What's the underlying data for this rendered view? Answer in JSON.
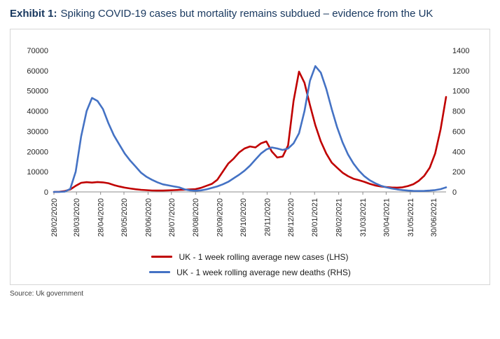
{
  "exhibit": {
    "label": "Exhibit 1:",
    "title": "Spiking COVID-19 cases but mortality remains subdued – evidence from the UK"
  },
  "source_note": "Source: Uk government",
  "chart_data": {
    "type": "line",
    "title": "Spiking COVID-19 cases but mortality remains subdued – evidence from the UK",
    "grid": false,
    "legend_position": "bottom",
    "x_axis": {
      "unit": "days since 28/02/2020",
      "range_days": [
        0,
        504
      ],
      "tick_labels": [
        "28/02/2020",
        "28/03/2020",
        "28/04/2020",
        "28/05/2020",
        "28/06/2020",
        "28/07/2020",
        "28/08/2020",
        "28/09/2020",
        "28/10/2020",
        "28/11/2020",
        "28/12/2020",
        "28/01/2021",
        "28/02/2021",
        "31/03/2021",
        "30/04/2021",
        "31/05/2021",
        "30/06/2021"
      ],
      "tick_days": [
        0,
        29,
        60,
        90,
        121,
        151,
        182,
        213,
        243,
        274,
        304,
        335,
        366,
        397,
        427,
        458,
        488
      ]
    },
    "left_axis": {
      "min": 0,
      "max": 70000,
      "ticks": [
        0,
        10000,
        20000,
        30000,
        40000,
        50000,
        60000,
        70000
      ]
    },
    "right_axis": {
      "min": 0,
      "max": 1400,
      "ticks": [
        0,
        200,
        400,
        600,
        800,
        1000,
        1200,
        1400
      ]
    },
    "x_days": [
      0,
      7,
      14,
      21,
      28,
      35,
      42,
      49,
      56,
      63,
      70,
      77,
      84,
      91,
      98,
      105,
      112,
      119,
      126,
      133,
      140,
      147,
      154,
      161,
      168,
      175,
      182,
      189,
      196,
      203,
      210,
      217,
      224,
      231,
      238,
      245,
      252,
      259,
      266,
      273,
      280,
      287,
      294,
      301,
      308,
      315,
      322,
      329,
      336,
      343,
      350,
      357,
      364,
      371,
      378,
      385,
      392,
      399,
      406,
      413,
      420,
      427,
      434,
      441,
      448,
      455,
      462,
      469,
      476,
      483,
      490,
      497,
      504
    ],
    "series": [
      {
        "name": "UK - 1 week rolling average new cases (LHS)",
        "axis": "left",
        "color": "#C00000",
        "values": [
          10,
          60,
          400,
          1200,
          3000,
          4500,
          4800,
          4600,
          4900,
          4700,
          4300,
          3400,
          2700,
          2100,
          1700,
          1300,
          1050,
          850,
          700,
          650,
          670,
          750,
          850,
          1000,
          1100,
          1250,
          1400,
          2000,
          3000,
          4000,
          6000,
          10000,
          14000,
          16500,
          19500,
          21500,
          22500,
          22000,
          24000,
          25000,
          20000,
          17000,
          17500,
          23000,
          45000,
          59500,
          54000,
          43000,
          33000,
          25000,
          19000,
          14500,
          12000,
          9500,
          7800,
          6500,
          5800,
          5000,
          4000,
          3200,
          2700,
          2400,
          2200,
          2100,
          2300,
          2900,
          3800,
          5500,
          8000,
          12000,
          19000,
          31000,
          47000
        ]
      },
      {
        "name": "UK - 1 week rolling average new deaths (RHS)",
        "axis": "right",
        "color": "#4472C4",
        "values": [
          0,
          0,
          3,
          30,
          200,
          550,
          800,
          930,
          900,
          820,
          680,
          560,
          470,
          380,
          310,
          250,
          190,
          150,
          120,
          95,
          75,
          65,
          55,
          45,
          25,
          15,
          12,
          15,
          25,
          40,
          55,
          75,
          100,
          135,
          170,
          210,
          260,
          320,
          380,
          420,
          440,
          430,
          415,
          430,
          480,
          580,
          800,
          1100,
          1245,
          1180,
          1020,
          820,
          640,
          490,
          370,
          280,
          210,
          155,
          115,
          85,
          62,
          46,
          34,
          25,
          18,
          13,
          10,
          9,
          10,
          13,
          18,
          28,
          45
        ]
      }
    ]
  }
}
